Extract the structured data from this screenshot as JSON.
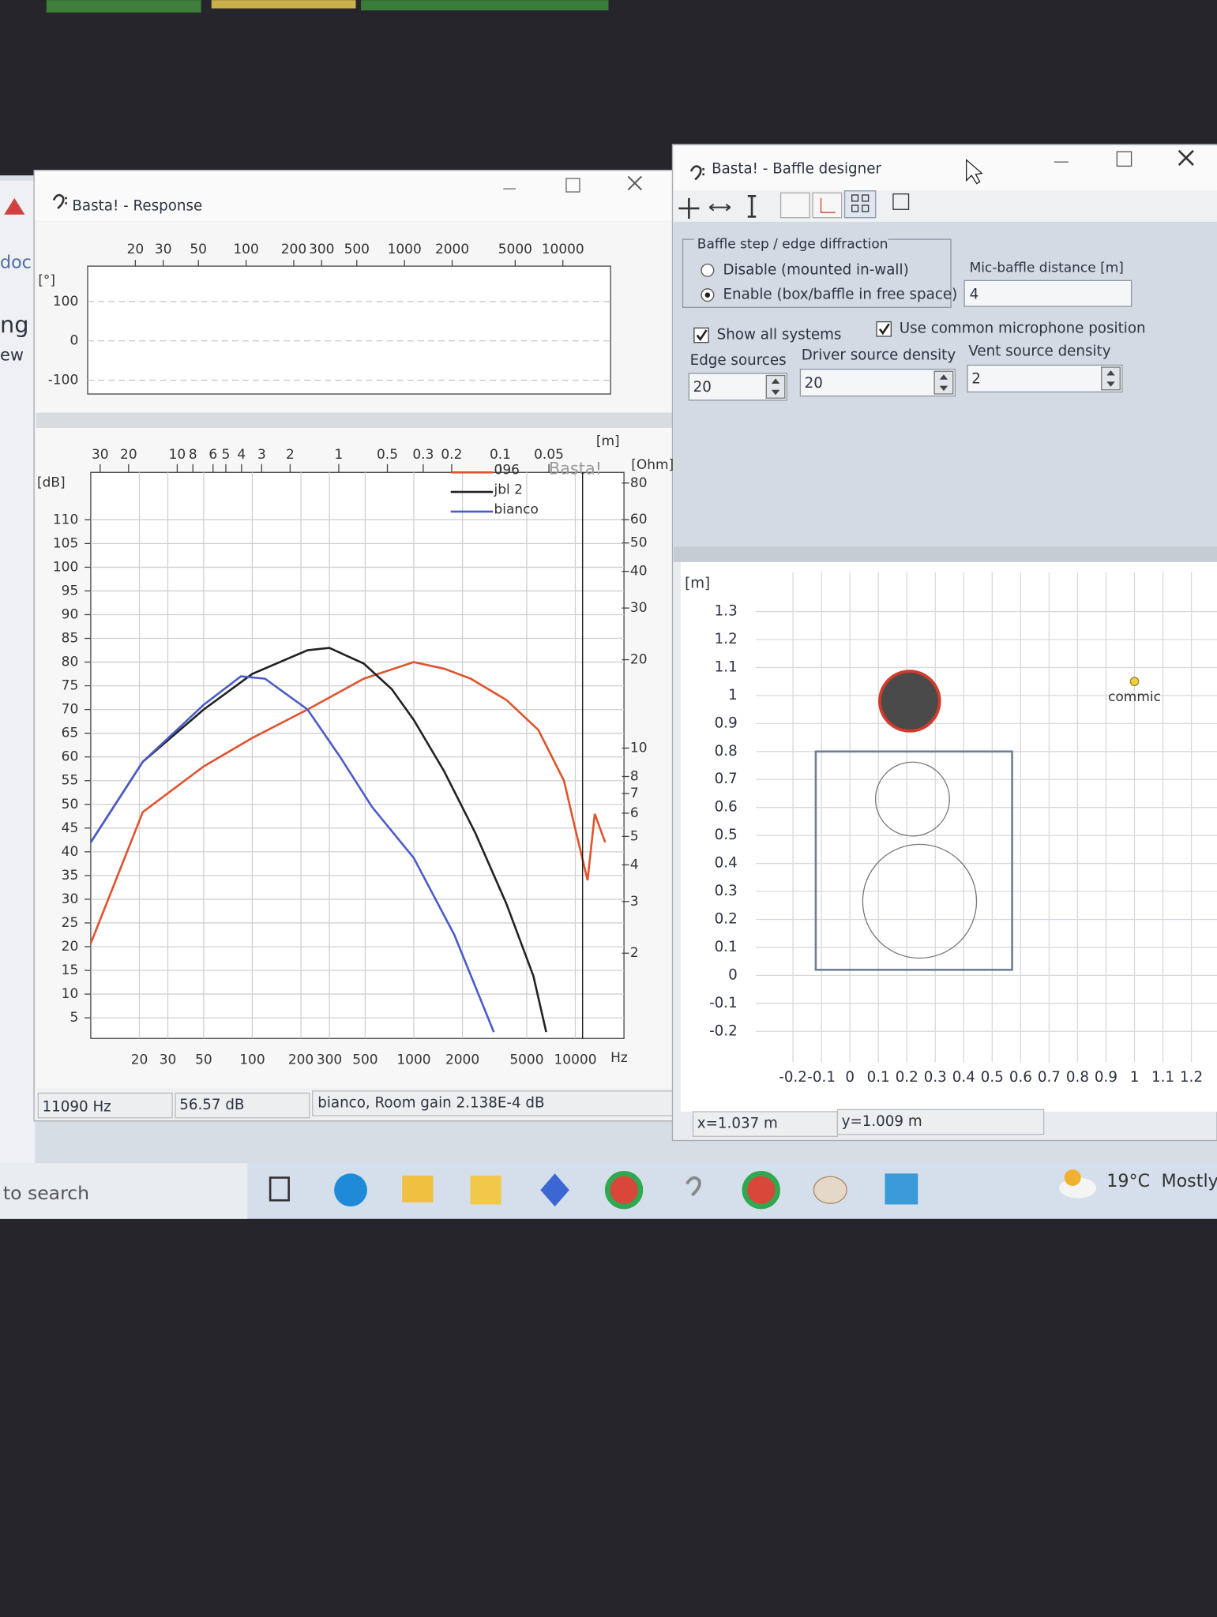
{
  "side_app": {
    "texts": [
      "doc",
      "ng",
      "ew"
    ]
  },
  "response_window": {
    "title": "Basta! - Response",
    "phase_chart": {
      "type": "line",
      "y_label": "[°]",
      "log_x": true,
      "xlim": [
        10,
        20000
      ],
      "ylim": [
        -135,
        190
      ],
      "yticks": [
        100,
        0,
        -100
      ],
      "xticks": [
        20,
        30,
        50,
        100,
        200,
        300,
        500,
        1000,
        2000,
        5000,
        10000
      ]
    },
    "spl_chart": {
      "type": "line",
      "y_label": "[dB]",
      "y2_label": "[Ohm]",
      "x2_label": "[m]",
      "x_unit": "Hz",
      "watermark": "Basta!",
      "log_x": true,
      "grid": true,
      "xlim": [
        10,
        20000
      ],
      "ylim": [
        0,
        120
      ],
      "yticks": [
        5,
        10,
        15,
        20,
        25,
        30,
        35,
        40,
        45,
        50,
        55,
        60,
        65,
        70,
        75,
        80,
        85,
        90,
        95,
        100,
        105,
        110
      ],
      "y2_log": true,
      "y2lim": [
        1,
        87
      ],
      "y2ticks": [
        2,
        3,
        4,
        5,
        6,
        7,
        8,
        10,
        20,
        30,
        40,
        50,
        60,
        80
      ],
      "xticks": [
        20,
        30,
        50,
        100,
        200,
        300,
        500,
        1000,
        2000,
        5000,
        10000
      ],
      "x2ticks": [
        30,
        20,
        10,
        8,
        6,
        5,
        4,
        3,
        2,
        1,
        0.5,
        0.3,
        0.2,
        0.1,
        0.05
      ],
      "series": [
        {
          "name": "096",
          "color": "#e0532e",
          "x": [
            10,
            21,
            50,
            100,
            220,
            490,
            1000,
            1540,
            2250,
            3750,
            5900,
            8500,
            9800,
            11900,
            13200,
            15300
          ],
          "values": [
            20.7,
            48.4,
            58,
            64,
            70,
            76.5,
            80,
            78.6,
            76.5,
            72,
            65.7,
            55,
            46,
            34,
            48,
            42
          ]
        },
        {
          "name": "jbl 2",
          "color": "#222222",
          "x": [
            10,
            21,
            50,
            100,
            220,
            300,
            490,
            730,
            1000,
            1540,
            2400,
            3750,
            5500,
            6600
          ],
          "values": [
            42,
            59,
            70,
            77.5,
            82.5,
            83,
            79.7,
            74.3,
            67.8,
            57,
            44,
            29,
            13.8,
            2
          ]
        },
        {
          "name": "bianco",
          "color": "#4a5cc8",
          "x": [
            10,
            21,
            50,
            85,
            120,
            220,
            350,
            550,
            1000,
            1780,
            3130
          ],
          "values": [
            42,
            59,
            71,
            77,
            76.5,
            70,
            60,
            49.5,
            38.7,
            22.5,
            2
          ]
        }
      ],
      "cursor": {
        "value": 11090,
        "label": "11090 Hz"
      }
    },
    "status_level": "56.57 dB",
    "status_info": "bianco, Room gain 2.138E-4 dB"
  },
  "baffle_window": {
    "title": "Basta! - Baffle designer",
    "group_title": "Baffle step / edge diffraction",
    "options": [
      "Disable (mounted in-wall)",
      "Enable (box/baffle in free space)"
    ],
    "selected_option": 1,
    "mic_distance_label": "Mic-baffle distance [m]",
    "mic_distance": "4",
    "checkboxes": [
      {
        "label": "Show all systems",
        "checked": true
      },
      {
        "label": "Use common microphone position",
        "checked": true
      }
    ],
    "fields": [
      {
        "label": "Edge sources",
        "value": "20"
      },
      {
        "label": "Driver source density",
        "value": "20"
      },
      {
        "label": "Vent source density",
        "value": "2"
      }
    ],
    "plot": {
      "y_label": "[m]",
      "xlim": [
        -0.33,
        1.29
      ],
      "ylim": [
        -0.31,
        1.44
      ],
      "xticks": [
        -0.2,
        -0.1,
        0,
        0.1,
        0.2,
        0.3,
        0.4,
        0.5,
        0.6,
        0.7,
        0.8,
        0.9,
        1,
        1.1,
        1.2
      ],
      "yticks": [
        -0.2,
        -0.1,
        0,
        0.1,
        0.2,
        0.3,
        0.4,
        0.5,
        0.6,
        0.7,
        0.8,
        0.9,
        1,
        1.1,
        1.2,
        1.3
      ],
      "baffle": {
        "x": [
          -0.12,
          0.57
        ],
        "y": [
          0.02,
          0.8
        ]
      },
      "drivers": [
        {
          "x": 0.22,
          "y": 0.63,
          "r": 0.13,
          "selected": false
        },
        {
          "x": 0.245,
          "y": 0.265,
          "r": 0.2,
          "selected": false
        },
        {
          "x": 0.21,
          "y": 0.98,
          "r": 0.105,
          "selected": true
        }
      ],
      "microphone": {
        "label": "commic",
        "x": 1.0,
        "y": 1.05
      }
    },
    "status_x": "x=1.037 m",
    "status_y": "y=1.009 m"
  },
  "taskbar": {
    "search": "to search",
    "temperature": "19°C",
    "weather": "Mostly"
  }
}
